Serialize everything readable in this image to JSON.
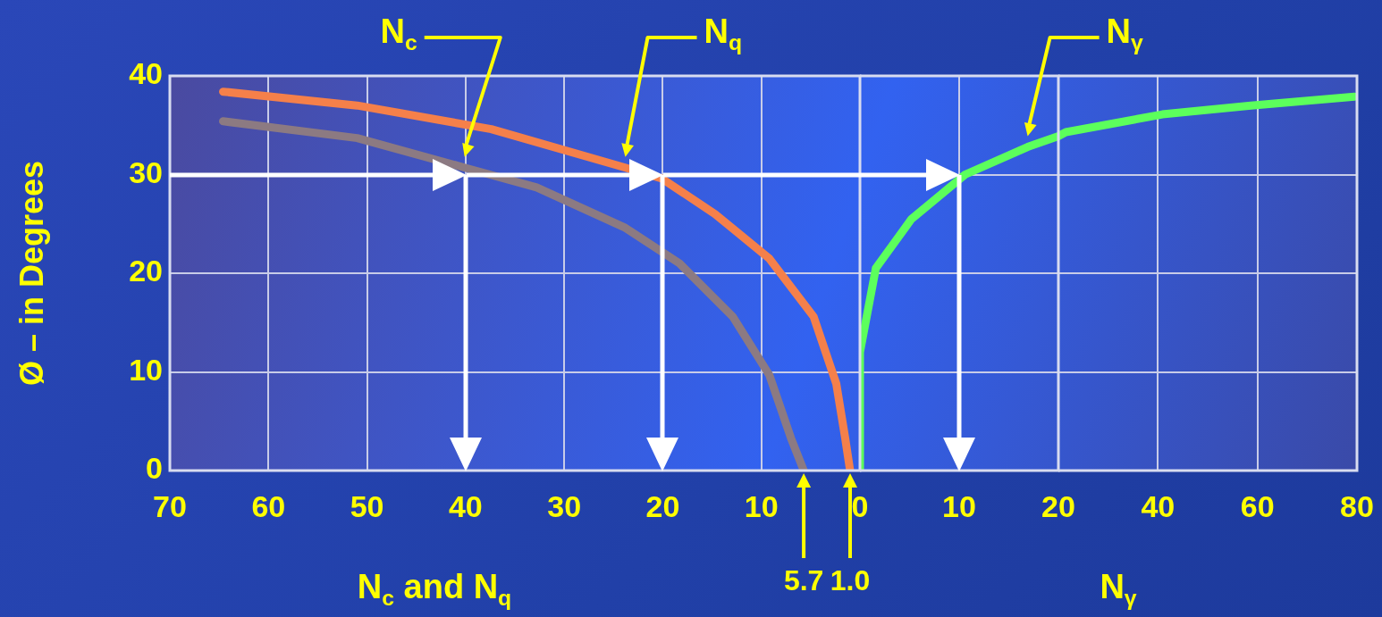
{
  "chart_data": [
    {
      "type": "line",
      "xlabel": "N$_{c}$ and N$_{q}$",
      "ylabel": "Ø – in Degrees",
      "xlim": [
        70,
        0
      ],
      "xticks": [
        70,
        60,
        50,
        40,
        30,
        20,
        10,
        0
      ],
      "ylim": [
        0,
        40
      ],
      "yticks": [
        0,
        10,
        20,
        30,
        40
      ],
      "grid": true,
      "marker": "none",
      "series": [
        {
          "name": "N$_{c}$",
          "color": "#8c7a82",
          "x": [
            64.6,
            51.0,
            40.1,
            32.8,
            23.8,
            18.3,
            12.9,
            9.2,
            7.0,
            5.7
          ],
          "values": [
            35.4,
            33.7,
            30.7,
            28.7,
            24.6,
            21.0,
            15.6,
            9.7,
            3.3,
            0
          ]
        },
        {
          "name": "N$_{q}$",
          "color": "#f5804a",
          "x": [
            64.6,
            51.0,
            37.4,
            23.8,
            20.1,
            14.7,
            9.2,
            4.7,
            2.4,
            1.5,
            1.0
          ],
          "values": [
            38.4,
            37.0,
            34.6,
            30.7,
            29.6,
            26.0,
            21.5,
            15.6,
            8.8,
            3.3,
            0
          ]
        }
      ],
      "annotations": [
        "5.7",
        "1.0"
      ]
    },
    {
      "type": "line",
      "xlim": [
        0,
        20
      ],
      "xticks": [
        {
          "value": 0,
          "label": null
        },
        10,
        20
      ],
      "ylim": [
        0,
        40
      ],
      "yticks": [
        0,
        10,
        20,
        30,
        40
      ],
      "grid": true,
      "marker": "none",
      "tick_labels": "x",
      "series": [
        {
          "name": "N$_{γ}$",
          "color": "#5cff5c",
          "x": [
            0,
            0,
            1.6,
            5.2,
            10.6,
            16.9,
            20
          ],
          "values": [
            0,
            12,
            20.5,
            25.5,
            30.0,
            32.8,
            33.9
          ]
        }
      ]
    },
    {
      "type": "line",
      "xlabel": "N$_{γ}$",
      "xlim": [
        20,
        80
      ],
      "xticks": [
        {
          "value": 20,
          "label": null
        },
        40,
        60,
        80
      ],
      "ylim": [
        0,
        40
      ],
      "yticks": [
        0,
        10,
        20,
        30,
        40
      ],
      "grid": true,
      "marker": "none",
      "tick_labels": "x",
      "series": [
        {
          "color": "#5cff5c",
          "x": [
            20,
            21.5,
            40.9,
            58.7,
            79.5
          ],
          "values": [
            33.9,
            34.3,
            36.1,
            37.0,
            37.9
          ]
        }
      ]
    }
  ]
}
